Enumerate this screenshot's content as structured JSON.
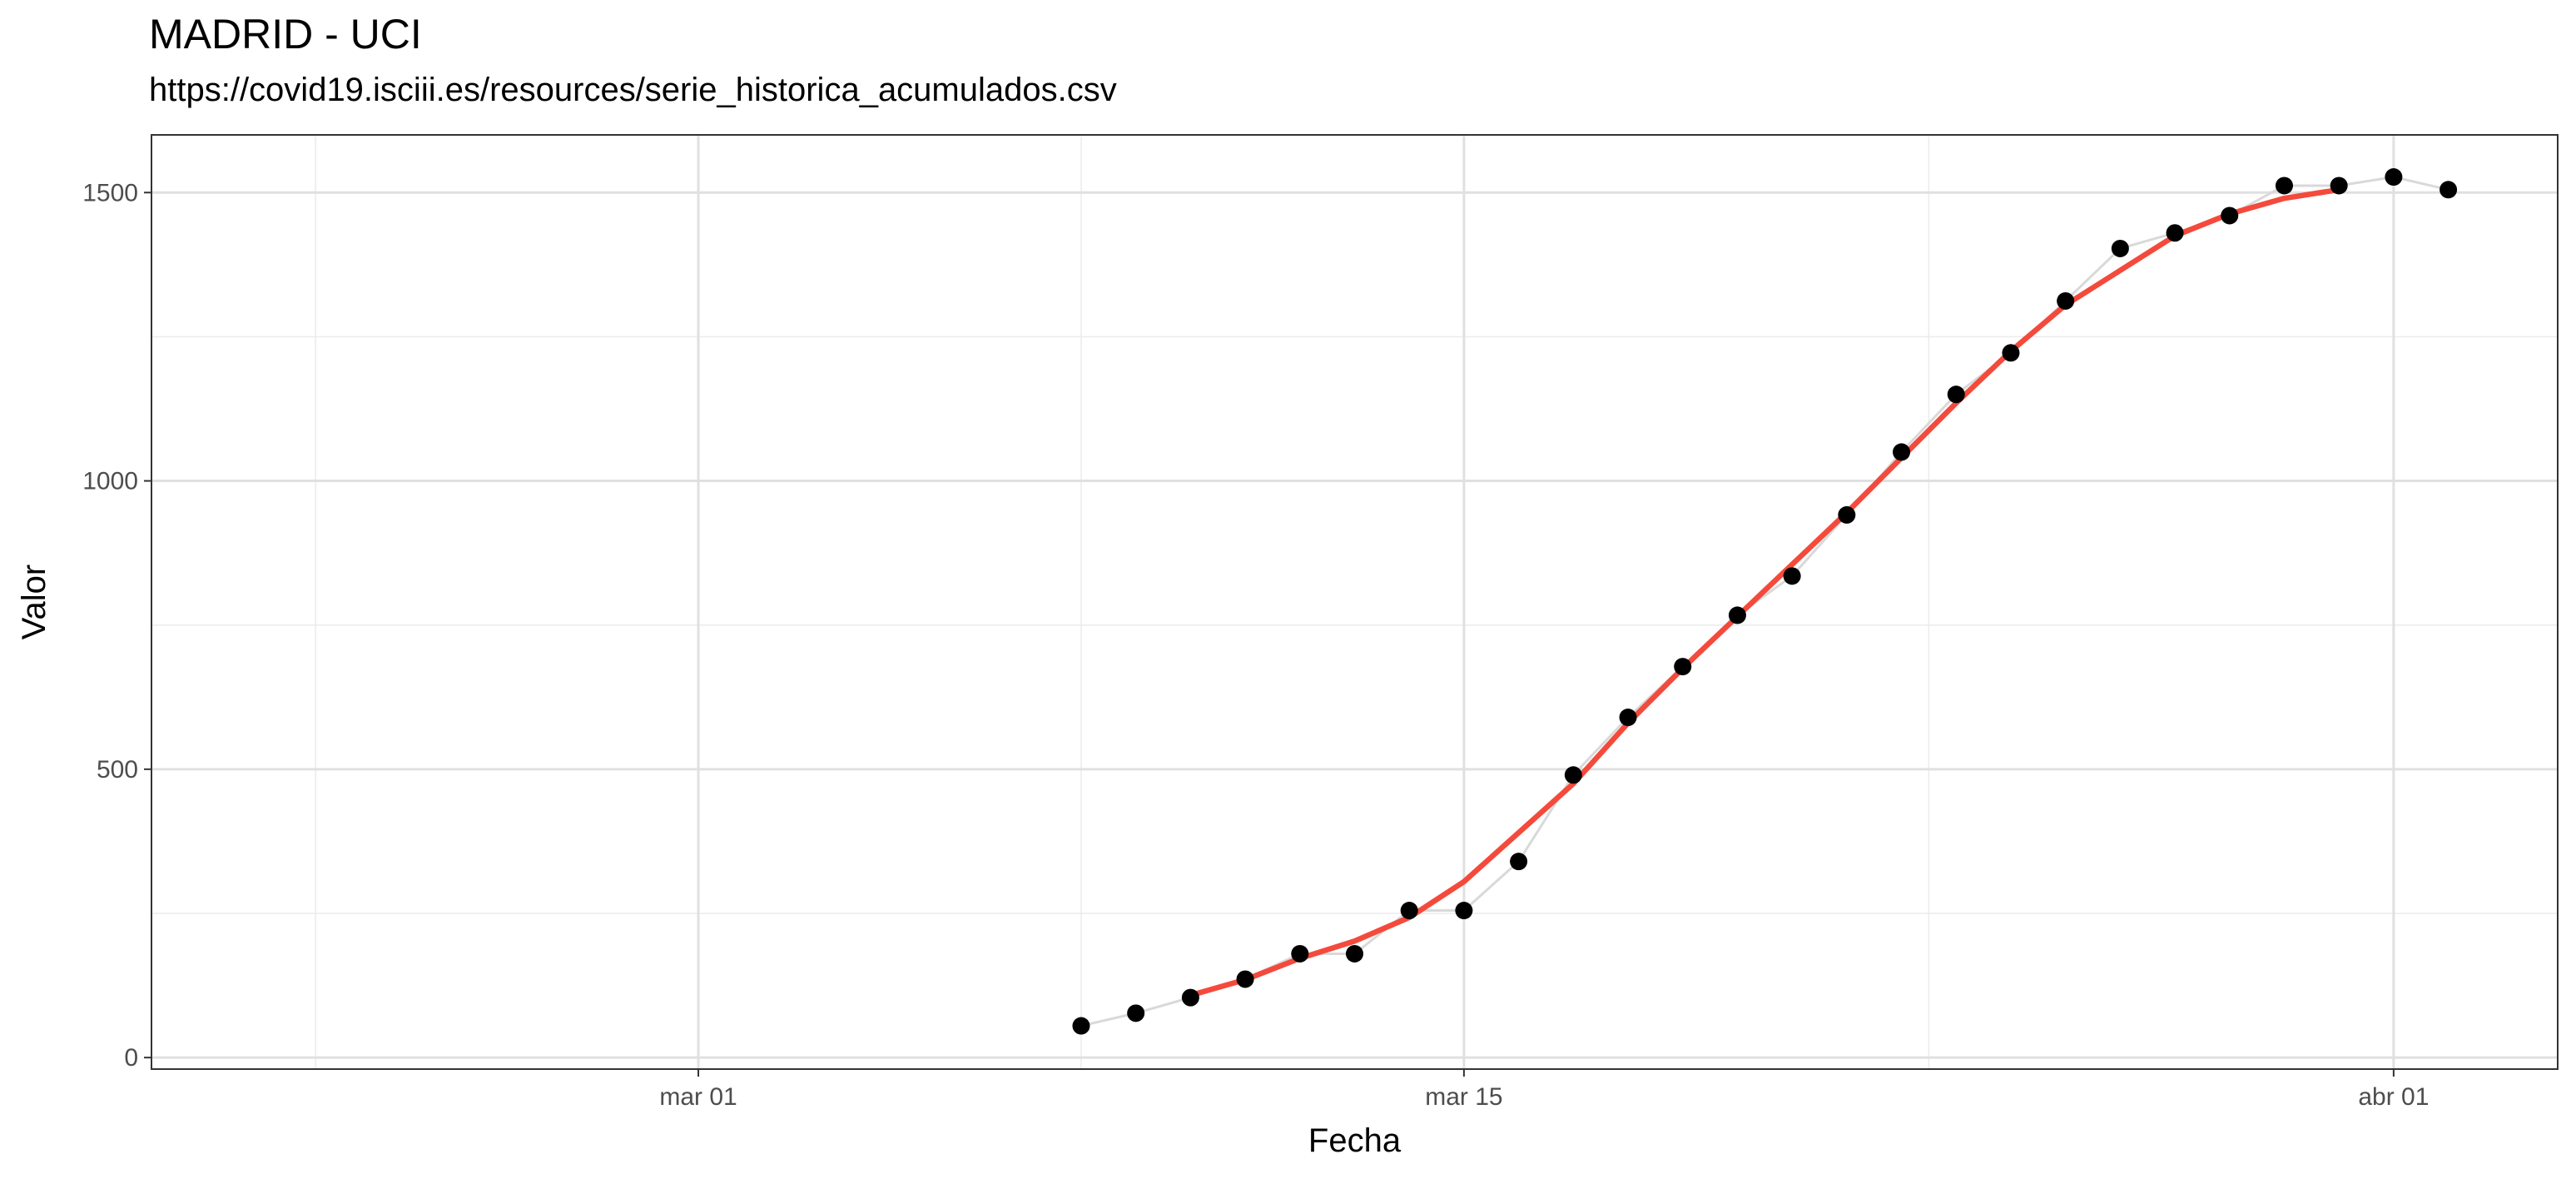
{
  "chart_data": {
    "type": "scatter",
    "title": "MADRID - UCI",
    "subtitle": "https://covid19.isciii.es/resources/serie_historica_acumulados.csv",
    "xlabel": "Fecha",
    "ylabel": "Valor",
    "xlim": [
      "2020-02-20",
      "2020-04-04"
    ],
    "ylim": [
      -20,
      1600
    ],
    "x_ticks": [
      {
        "date": "2020-03-01",
        "label": "mar 01"
      },
      {
        "date": "2020-03-15",
        "label": "mar 15"
      },
      {
        "date": "2020-04-01",
        "label": "abr 01"
      }
    ],
    "y_ticks": [
      0,
      500,
      1000,
      1500
    ],
    "grid": true,
    "series": [
      {
        "type": "points",
        "color": "#000000",
        "connector_color": "#d9d9d9",
        "points": [
          {
            "x": "2020-03-08",
            "y": 55
          },
          {
            "x": "2020-03-09",
            "y": 77
          },
          {
            "x": "2020-03-10",
            "y": 104
          },
          {
            "x": "2020-03-11",
            "y": 136
          },
          {
            "x": "2020-03-12",
            "y": 180
          },
          {
            "x": "2020-03-13",
            "y": 180
          },
          {
            "x": "2020-03-14",
            "y": 255
          },
          {
            "x": "2020-03-15",
            "y": 255
          },
          {
            "x": "2020-03-16",
            "y": 340
          },
          {
            "x": "2020-03-17",
            "y": 490
          },
          {
            "x": "2020-03-18",
            "y": 590
          },
          {
            "x": "2020-03-19",
            "y": 678
          },
          {
            "x": "2020-03-20",
            "y": 767
          },
          {
            "x": "2020-03-21",
            "y": 835
          },
          {
            "x": "2020-03-22",
            "y": 941
          },
          {
            "x": "2020-03-23",
            "y": 1050
          },
          {
            "x": "2020-03-24",
            "y": 1150
          },
          {
            "x": "2020-03-25",
            "y": 1222
          },
          {
            "x": "2020-03-26",
            "y": 1312
          },
          {
            "x": "2020-03-27",
            "y": 1403
          },
          {
            "x": "2020-03-28",
            "y": 1430
          },
          {
            "x": "2020-03-29",
            "y": 1460
          },
          {
            "x": "2020-03-30",
            "y": 1512
          },
          {
            "x": "2020-03-31",
            "y": 1512
          },
          {
            "x": "2020-04-01",
            "y": 1527
          },
          {
            "x": "2020-04-02",
            "y": 1505
          }
        ]
      },
      {
        "type": "line",
        "color": "#f44a3c",
        "points": [
          {
            "x": "2020-03-10",
            "y": 108
          },
          {
            "x": "2020-03-11",
            "y": 135
          },
          {
            "x": "2020-03-12",
            "y": 172
          },
          {
            "x": "2020-03-13",
            "y": 202
          },
          {
            "x": "2020-03-14",
            "y": 243
          },
          {
            "x": "2020-03-15",
            "y": 305
          },
          {
            "x": "2020-03-16",
            "y": 390
          },
          {
            "x": "2020-03-17",
            "y": 475
          },
          {
            "x": "2020-03-18",
            "y": 580
          },
          {
            "x": "2020-03-19",
            "y": 675
          },
          {
            "x": "2020-03-20",
            "y": 765
          },
          {
            "x": "2020-03-21",
            "y": 855
          },
          {
            "x": "2020-03-22",
            "y": 945
          },
          {
            "x": "2020-03-23",
            "y": 1040
          },
          {
            "x": "2020-03-24",
            "y": 1135
          },
          {
            "x": "2020-03-25",
            "y": 1225
          },
          {
            "x": "2020-03-26",
            "y": 1305
          },
          {
            "x": "2020-03-27",
            "y": 1365
          },
          {
            "x": "2020-03-28",
            "y": 1425
          },
          {
            "x": "2020-03-29",
            "y": 1463
          },
          {
            "x": "2020-03-30",
            "y": 1490
          },
          {
            "x": "2020-03-31",
            "y": 1505
          }
        ]
      }
    ]
  }
}
